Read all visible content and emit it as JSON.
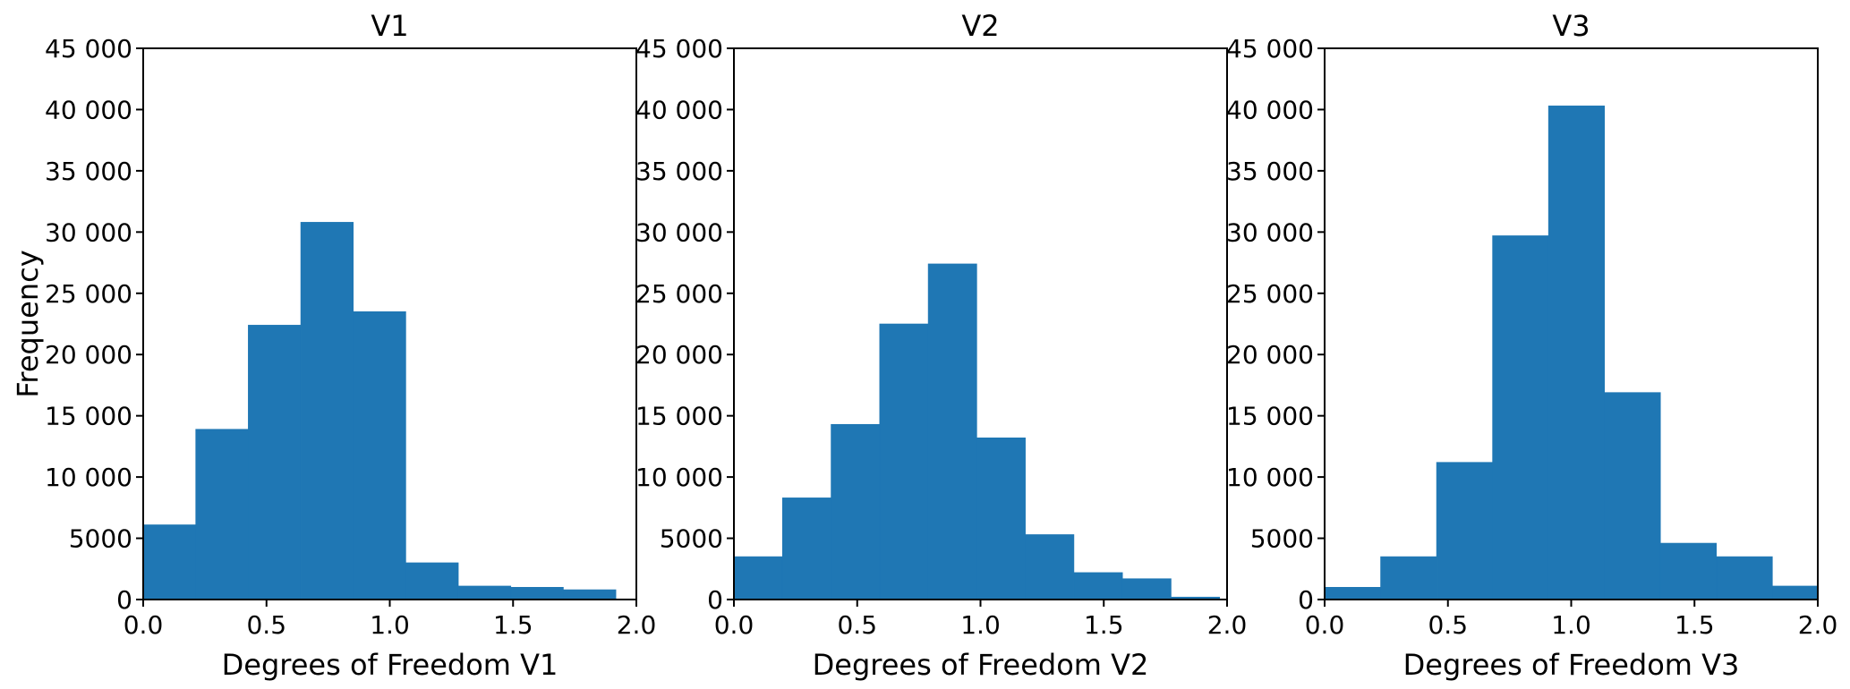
{
  "figure": {
    "ylabel": "Frequency"
  },
  "chart_data": [
    {
      "type": "bar",
      "title": "V1",
      "xlabel": "Degrees of Freedom V1",
      "xlim": [
        0.0,
        2.0
      ],
      "ylim": [
        0,
        45000
      ],
      "xticks": [
        "0.0",
        "0.5",
        "1.0",
        "1.5",
        "2.0"
      ],
      "yticks": [
        "0",
        "5000",
        "10 000",
        "15 000",
        "20 000",
        "25 000",
        "30 000",
        "35 000",
        "40 000",
        "45 000"
      ],
      "bin_edges": [
        0.0,
        0.213,
        0.426,
        0.639,
        0.852,
        1.065,
        1.278,
        1.491,
        1.704,
        1.917
      ],
      "values": [
        6100,
        13900,
        22400,
        30800,
        23500,
        3000,
        1100,
        1000,
        800
      ],
      "color": "#1f77b4"
    },
    {
      "type": "bar",
      "title": "V2",
      "xlabel": "Degrees of Freedom V2",
      "xlim": [
        0.0,
        2.0
      ],
      "ylim": [
        0,
        45000
      ],
      "xticks": [
        "0.0",
        "0.5",
        "1.0",
        "1.5",
        "2.0"
      ],
      "yticks": [
        "0",
        "5000",
        "10 000",
        "15 000",
        "20 000",
        "25 000",
        "30 000",
        "35 000",
        "40 000",
        "45 000"
      ],
      "bin_edges": [
        0.0,
        0.197,
        0.394,
        0.591,
        0.788,
        0.985,
        1.182,
        1.379,
        1.576,
        1.773,
        1.97
      ],
      "values": [
        3500,
        8300,
        14300,
        22500,
        27400,
        13200,
        5300,
        2200,
        1700,
        200
      ],
      "color": "#1f77b4"
    },
    {
      "type": "bar",
      "title": "V3",
      "xlabel": "Degrees of Freedom V3",
      "xlim": [
        0.0,
        2.0
      ],
      "ylim": [
        0,
        45000
      ],
      "xticks": [
        "0.0",
        "0.5",
        "1.0",
        "1.5",
        "2.0"
      ],
      "yticks": [
        "0",
        "5000",
        "10 000",
        "15 000",
        "20 000",
        "25 000",
        "30 000",
        "35 000",
        "40 000",
        "45 000"
      ],
      "bin_edges": [
        0.0,
        0.227,
        0.454,
        0.681,
        0.908,
        1.135,
        1.362,
        1.589,
        1.816,
        2.0
      ],
      "values": [
        1000,
        3500,
        11200,
        29700,
        40300,
        16900,
        4600,
        3500,
        1100
      ],
      "color": "#1f77b4"
    }
  ]
}
